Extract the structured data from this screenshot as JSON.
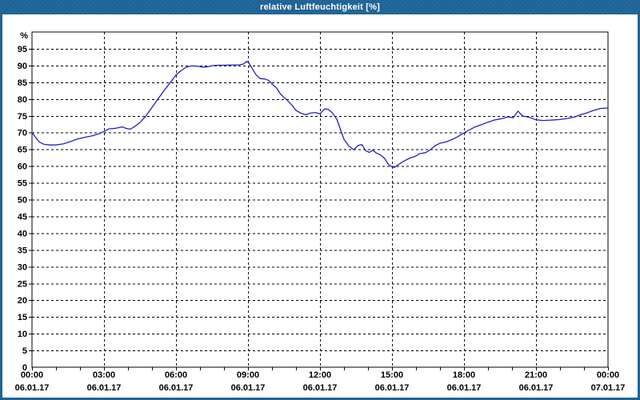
{
  "window": {
    "title": "relative Luftfeuchtigkeit [%]"
  },
  "colors": {
    "title_bar": "#1E6396",
    "title_text": "#FFFFFF",
    "frame": "#1E6396",
    "plot_bg": "#FFFFFF",
    "grid": "#000000",
    "axis": "#000000",
    "tick_label": "#000000",
    "line": "#2121C8"
  },
  "chart_data": {
    "type": "line",
    "title": "relative Luftfeuchtigkeit [%]",
    "ylabel": "%",
    "xlabel": "",
    "grid": true,
    "legend_position": "none",
    "ylim": [
      0,
      100
    ],
    "xlim": [
      0,
      24
    ],
    "yticks": [
      0,
      5,
      10,
      15,
      20,
      25,
      30,
      35,
      40,
      45,
      50,
      55,
      60,
      65,
      70,
      75,
      80,
      85,
      90,
      95
    ],
    "minor_xtick_every_hours": 1,
    "xticks": [
      {
        "hour": 0,
        "time": "00:00",
        "date": "06.01.17"
      },
      {
        "hour": 3,
        "time": "03:00",
        "date": "06.01.17"
      },
      {
        "hour": 6,
        "time": "06:00",
        "date": "06.01.17"
      },
      {
        "hour": 9,
        "time": "09:00",
        "date": "06.01.17"
      },
      {
        "hour": 12,
        "time": "12:00",
        "date": "06.01.17"
      },
      {
        "hour": 15,
        "time": "15:00",
        "date": "06.01.17"
      },
      {
        "hour": 18,
        "time": "18:00",
        "date": "06.01.17"
      },
      {
        "hour": 21,
        "time": "21:00",
        "date": "06.01.17"
      },
      {
        "hour": 24,
        "time": "00:00",
        "date": "07.01.17"
      }
    ],
    "series": [
      {
        "name": "relative Luftfeuchtigkeit",
        "color": "#2121C8",
        "points": [
          [
            0,
            70
          ],
          [
            0.15,
            68.6
          ],
          [
            0.3,
            67.2
          ],
          [
            0.5,
            66.5
          ],
          [
            0.75,
            66.3
          ],
          [
            1,
            66.3
          ],
          [
            1.3,
            66.6
          ],
          [
            1.6,
            67.3
          ],
          [
            1.9,
            68.1
          ],
          [
            2.2,
            68.6
          ],
          [
            2.5,
            69
          ],
          [
            2.8,
            69.7
          ],
          [
            3,
            70.3
          ],
          [
            3.2,
            71.1
          ],
          [
            3.5,
            71.3
          ],
          [
            3.75,
            71.7
          ],
          [
            3.95,
            71.2
          ],
          [
            4.1,
            71
          ],
          [
            4.3,
            71.9
          ],
          [
            4.5,
            73
          ],
          [
            4.75,
            75
          ],
          [
            5,
            77.5
          ],
          [
            5.25,
            80
          ],
          [
            5.5,
            82.5
          ],
          [
            5.75,
            84.8
          ],
          [
            6,
            87.2
          ],
          [
            6.2,
            88.4
          ],
          [
            6.4,
            89.4
          ],
          [
            6.65,
            89.9
          ],
          [
            6.9,
            89.8
          ],
          [
            7.1,
            89.5
          ],
          [
            7.3,
            89.6
          ],
          [
            7.55,
            90
          ],
          [
            7.8,
            90.1
          ],
          [
            8,
            90.1
          ],
          [
            8.3,
            90.2
          ],
          [
            8.6,
            90.2
          ],
          [
            8.8,
            90.4
          ],
          [
            8.95,
            91.3
          ],
          [
            9.05,
            90.6
          ],
          [
            9.17,
            89.2
          ],
          [
            9.33,
            87.3
          ],
          [
            9.5,
            86.1
          ],
          [
            9.7,
            86
          ],
          [
            9.85,
            85.6
          ],
          [
            10,
            84.5
          ],
          [
            10.2,
            83.2
          ],
          [
            10.35,
            81.5
          ],
          [
            10.5,
            80.5
          ],
          [
            10.7,
            79.2
          ],
          [
            10.85,
            78
          ],
          [
            11,
            76.6
          ],
          [
            11.2,
            75.8
          ],
          [
            11.4,
            75.3
          ],
          [
            11.6,
            75.8
          ],
          [
            11.8,
            76
          ],
          [
            12,
            75.6
          ],
          [
            12.2,
            77.1
          ],
          [
            12.35,
            76.9
          ],
          [
            12.5,
            76
          ],
          [
            12.7,
            74
          ],
          [
            12.85,
            71
          ],
          [
            13,
            68
          ],
          [
            13.2,
            66
          ],
          [
            13.4,
            64.9
          ],
          [
            13.6,
            66.2
          ],
          [
            13.75,
            66.4
          ],
          [
            13.9,
            64.6
          ],
          [
            14.05,
            64.1
          ],
          [
            14.2,
            64.7
          ],
          [
            14.35,
            63.9
          ],
          [
            14.55,
            63.2
          ],
          [
            14.7,
            62.2
          ],
          [
            14.85,
            60.5
          ],
          [
            15,
            59.8
          ],
          [
            15.1,
            59.6
          ],
          [
            15.3,
            60.6
          ],
          [
            15.5,
            61.5
          ],
          [
            15.75,
            62.4
          ],
          [
            16,
            63
          ],
          [
            16.15,
            63.7
          ],
          [
            16.4,
            64
          ],
          [
            16.6,
            64.9
          ],
          [
            16.8,
            66.1
          ],
          [
            17,
            66.8
          ],
          [
            17.25,
            67.2
          ],
          [
            17.5,
            67.9
          ],
          [
            17.75,
            68.8
          ],
          [
            18,
            69.9
          ],
          [
            18.25,
            70.9
          ],
          [
            18.5,
            71.8
          ],
          [
            18.75,
            72.4
          ],
          [
            19,
            73.1
          ],
          [
            19.3,
            73.8
          ],
          [
            19.6,
            74.2
          ],
          [
            19.85,
            74.7
          ],
          [
            20.05,
            74.4
          ],
          [
            20.25,
            76.4
          ],
          [
            20.45,
            74.9
          ],
          [
            20.7,
            74.6
          ],
          [
            21,
            73.8
          ],
          [
            21.3,
            73.6
          ],
          [
            21.6,
            73.7
          ],
          [
            22,
            73.9
          ],
          [
            22.3,
            74.2
          ],
          [
            22.6,
            74.6
          ],
          [
            22.85,
            75.3
          ],
          [
            23.1,
            75.8
          ],
          [
            23.4,
            76.6
          ],
          [
            23.7,
            77.2
          ],
          [
            24,
            77.3
          ]
        ]
      }
    ]
  }
}
